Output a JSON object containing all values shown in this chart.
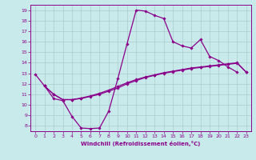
{
  "xlabel": "Windchill (Refroidissement éolien,°C)",
  "bg_color": "#c8eaea",
  "line_color": "#8b008b",
  "grid_color": "#aacccc",
  "xlim": [
    -0.5,
    23.5
  ],
  "ylim": [
    7.5,
    19.5
  ],
  "xticks": [
    0,
    1,
    2,
    3,
    4,
    5,
    6,
    7,
    8,
    9,
    10,
    11,
    12,
    13,
    14,
    15,
    16,
    17,
    18,
    19,
    20,
    21,
    22,
    23
  ],
  "yticks": [
    8,
    9,
    10,
    11,
    12,
    13,
    14,
    15,
    16,
    17,
    18,
    19
  ],
  "line1_x": [
    0,
    1,
    2,
    3,
    4,
    5,
    6,
    7,
    8,
    9,
    10,
    11,
    12,
    13,
    14,
    15,
    16,
    17,
    18,
    19,
    20,
    21,
    22
  ],
  "line1_y": [
    12.9,
    11.8,
    10.6,
    10.4,
    8.9,
    7.8,
    7.75,
    7.8,
    9.4,
    12.5,
    15.8,
    19.0,
    18.9,
    18.5,
    18.2,
    16.0,
    15.6,
    15.4,
    16.2,
    14.6,
    14.2,
    13.6,
    13.1
  ],
  "line2_x": [
    1,
    2,
    3,
    4,
    5,
    6,
    7,
    8,
    9,
    10,
    11,
    12,
    13,
    14,
    15,
    16,
    17,
    18,
    19,
    20,
    21,
    22,
    23
  ],
  "line2_y": [
    11.8,
    11.0,
    10.5,
    10.5,
    10.6,
    10.8,
    11.0,
    11.3,
    11.6,
    12.0,
    12.3,
    12.6,
    12.8,
    13.0,
    13.15,
    13.3,
    13.45,
    13.55,
    13.65,
    13.75,
    13.85,
    13.95,
    13.1
  ],
  "line3_x": [
    1,
    2,
    3,
    4,
    5,
    6,
    7,
    8,
    9,
    10,
    11,
    12,
    13,
    14,
    15,
    16,
    17,
    18,
    19,
    20,
    21,
    22,
    23
  ],
  "line3_y": [
    11.8,
    11.0,
    10.5,
    10.5,
    10.65,
    10.85,
    11.1,
    11.4,
    11.75,
    12.1,
    12.4,
    12.65,
    12.85,
    13.05,
    13.2,
    13.35,
    13.5,
    13.6,
    13.7,
    13.8,
    13.9,
    14.0,
    13.1
  ]
}
